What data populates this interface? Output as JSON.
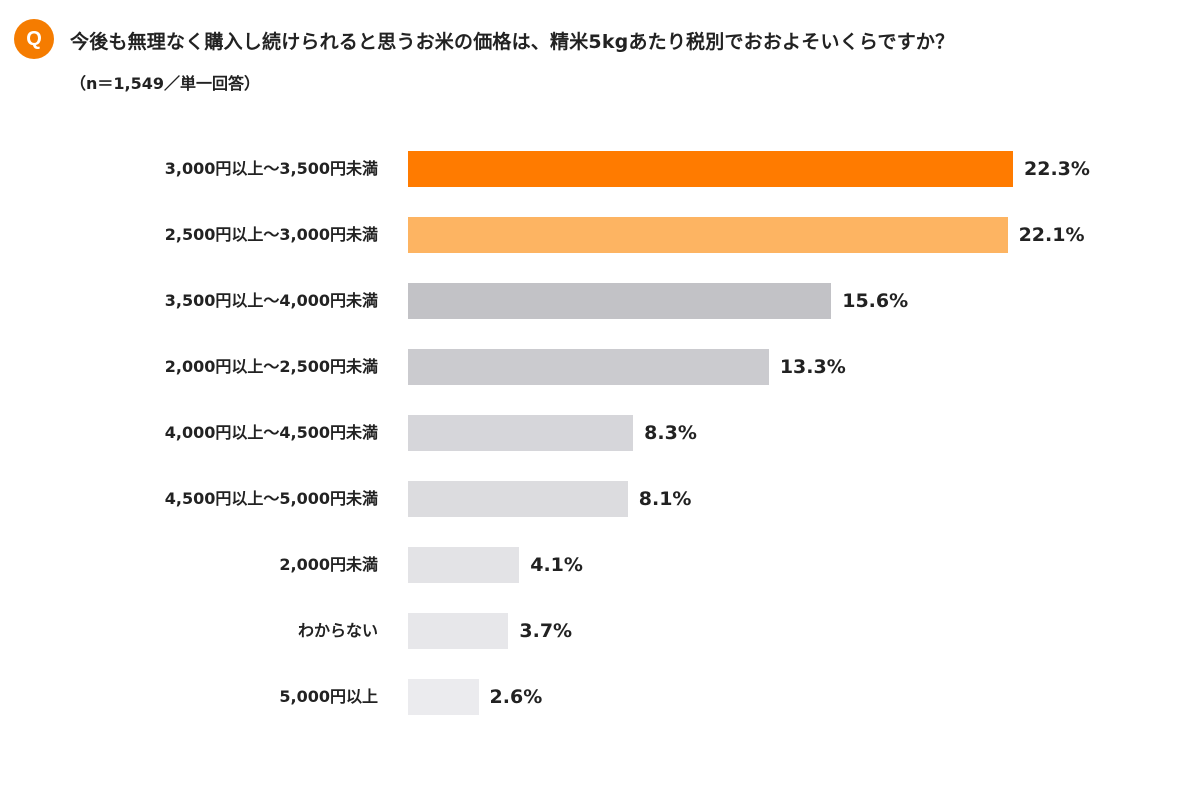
{
  "question": {
    "badge": "Q",
    "title": "今後も無理なく購入し続けられると思うお米の価格は、精米5kgあたり税別でおおよそいくらですか？",
    "subtitle": "（n＝1,549／単一回答）"
  },
  "colors": {
    "accent": "#F57C00"
  },
  "chart_data": {
    "type": "bar",
    "orientation": "horizontal",
    "title": "今後も無理なく購入し続けられると思うお米の価格は、精米5kgあたり税別でおおよそいくらですか？",
    "categories": [
      "3,000円以上～3,500円未満",
      "2,500円以上～3,000円未満",
      "3,500円以上～4,000円未満",
      "2,000円以上～2,500円未満",
      "4,000円以上～4,500円未満",
      "4,500円以上～5,000円未満",
      "2,000円未満",
      "わからない",
      "5,000円以上"
    ],
    "values": [
      22.3,
      22.1,
      15.6,
      13.3,
      8.3,
      8.1,
      4.1,
      3.7,
      2.6
    ],
    "value_labels": [
      "22.3%",
      "22.1%",
      "15.6%",
      "13.3%",
      "8.3%",
      "8.1%",
      "4.1%",
      "3.7%",
      "2.6%"
    ],
    "colors": [
      "#FF7B00",
      "#FDB462",
      "#C2C2C6",
      "#CBCBCF",
      "#D6D6DA",
      "#DCDCDF",
      "#E3E3E6",
      "#E7E7EA",
      "#EBEBEE"
    ],
    "xlim": [
      0,
      22.3
    ],
    "grid": false,
    "legend": "none"
  }
}
